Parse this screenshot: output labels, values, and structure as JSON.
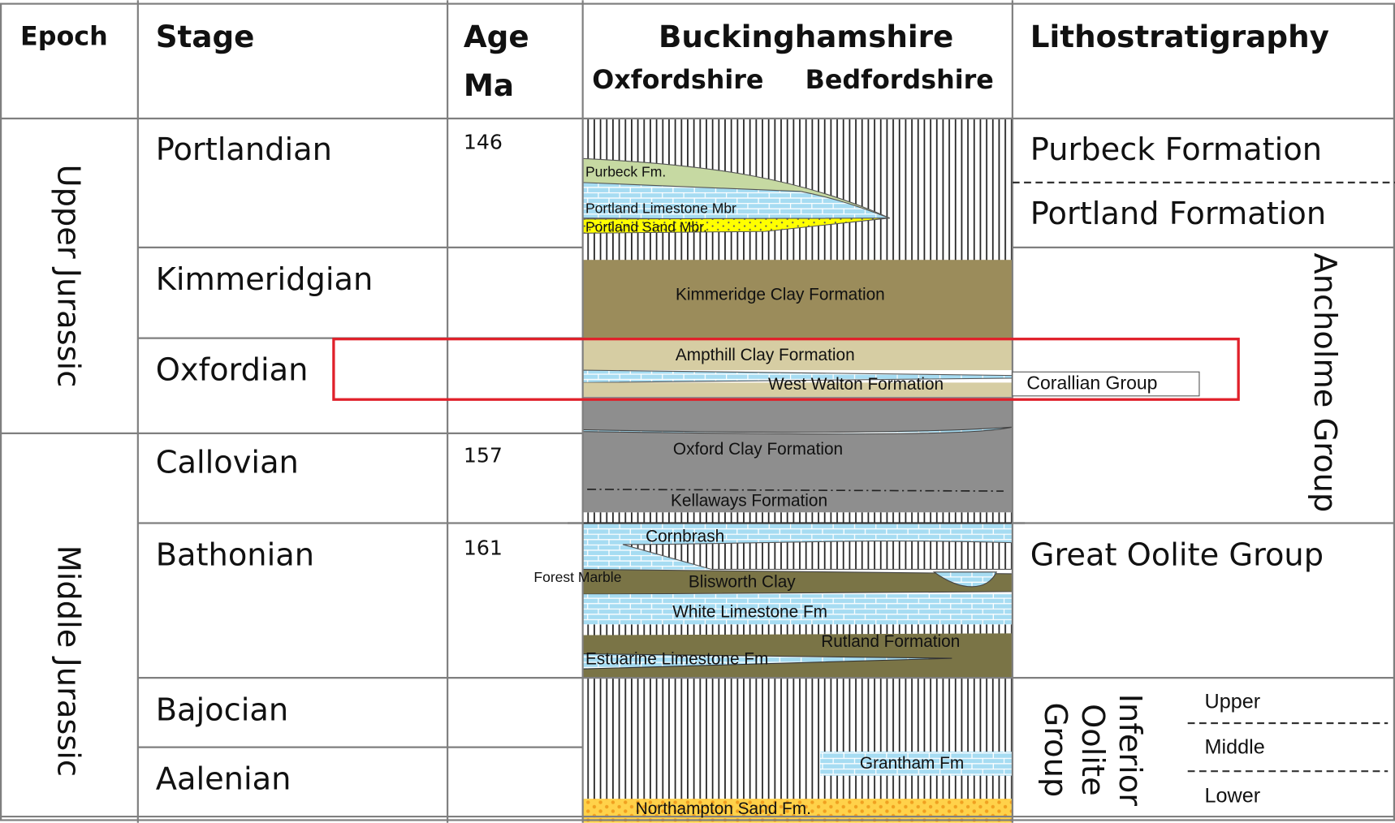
{
  "header": {
    "epoch": "Epoch",
    "stage": "Stage",
    "age": [
      "Age",
      "Ma"
    ],
    "region": "Buckinghamshire",
    "west": "Oxfordshire",
    "east": "Bedfordshire",
    "litho": "Lithostratigraphy"
  },
  "epochs": [
    "Upper Jurassic",
    "Middle Jurassic"
  ],
  "stages": [
    {
      "name": "Portlandian",
      "age": 146
    },
    {
      "name": "Kimmeridgian"
    },
    {
      "name": "Oxfordian"
    },
    {
      "name": "Callovian",
      "age": 157
    },
    {
      "name": "Bathonian",
      "age": 161
    },
    {
      "name": "Bajocian"
    },
    {
      "name": "Aalenian"
    }
  ],
  "formations": [
    "Purbeck Fm.",
    "Portland Limestone Mbr",
    "Portland Sand Mbr.",
    "Kimmeridge Clay Formation",
    "Ampthill Clay Formation",
    "West Walton Formation",
    "Oxford Clay Formation",
    "Kellaways Formation",
    "Cornbrash",
    "Forest Marble",
    "Blisworth Clay",
    "White Limestone Fm",
    "Rutland Formation",
    "Estuarine Limestone Fm",
    "Grantham Fm",
    "Northampton Sand Fm."
  ],
  "lithostratigraphy": {
    "purbeck": "Purbeck Formation",
    "portland": "Portland Formation",
    "ancholme": "Ancholme Group",
    "corallian": "Corallian Group",
    "great_oolite": "Great Oolite Group",
    "inferior_oolite": [
      "Inferior",
      "Oolite",
      "Group"
    ],
    "subdivisions": [
      "Upper",
      "Middle",
      "Lower"
    ]
  }
}
